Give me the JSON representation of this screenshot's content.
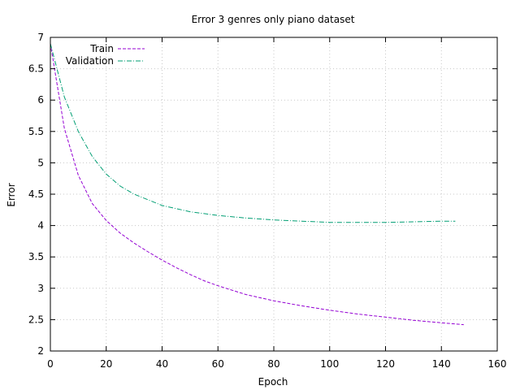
{
  "chart_data": {
    "type": "line",
    "title": "Error 3 genres only piano dataset",
    "xlabel": "Epoch",
    "ylabel": "Error",
    "xlim": [
      0,
      160
    ],
    "ylim": [
      2,
      7
    ],
    "xticks": [
      "0",
      "20",
      "40",
      "60",
      "80",
      "100",
      "120",
      "140",
      "160"
    ],
    "yticks": [
      "2",
      "2.5",
      "3",
      "3.5",
      "4",
      "4.5",
      "5",
      "5.5",
      "6",
      "6.5",
      "7"
    ],
    "grid": true,
    "legend_position": "top-left",
    "series": [
      {
        "name": "Train",
        "color": "#9400d3",
        "dash": "dashed",
        "x": [
          0,
          5,
          10,
          15,
          20,
          25,
          30,
          35,
          40,
          45,
          50,
          55,
          60,
          70,
          80,
          90,
          100,
          110,
          120,
          130,
          140,
          148
        ],
        "y": [
          6.9,
          5.55,
          4.8,
          4.35,
          4.08,
          3.88,
          3.72,
          3.58,
          3.45,
          3.33,
          3.22,
          3.12,
          3.04,
          2.9,
          2.8,
          2.72,
          2.65,
          2.59,
          2.54,
          2.49,
          2.45,
          2.42
        ]
      },
      {
        "name": "Validation",
        "color": "#009e73",
        "dash": "dash-dot",
        "x": [
          0,
          5,
          10,
          15,
          20,
          25,
          30,
          40,
          50,
          60,
          70,
          80,
          90,
          100,
          110,
          120,
          130,
          140,
          145
        ],
        "y": [
          6.9,
          6.05,
          5.5,
          5.1,
          4.82,
          4.63,
          4.5,
          4.32,
          4.22,
          4.16,
          4.12,
          4.09,
          4.07,
          4.05,
          4.05,
          4.05,
          4.06,
          4.07,
          4.07
        ]
      }
    ]
  }
}
